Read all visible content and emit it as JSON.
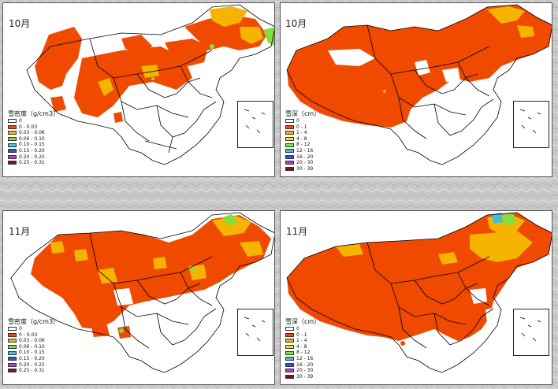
{
  "panels": [
    {
      "id": "p1",
      "month": "10月",
      "legend_title": "雪密度（g/cm3）",
      "variable": "density"
    },
    {
      "id": "p2",
      "month": "10月",
      "legend_title": "雪深（cm）",
      "variable": "depth"
    },
    {
      "id": "p3",
      "month": "11月",
      "legend_title": "雪密度（g/cm3）",
      "variable": "density"
    },
    {
      "id": "p4",
      "month": "11月",
      "legend_title": "雪深（cm）",
      "variable": "depth"
    }
  ],
  "legend_density": [
    {
      "label": "0",
      "color": "#ffffff"
    },
    {
      "label": "0 - 0.03",
      "color": "#f04a00"
    },
    {
      "label": "0.03 - 0.06",
      "color": "#f5b400"
    },
    {
      "label": "0.06 - 0.10",
      "color": "#7fe040"
    },
    {
      "label": "0.10 - 0.15",
      "color": "#3fc0d8"
    },
    {
      "label": "0.15 - 0.20",
      "color": "#3050e0"
    },
    {
      "label": "0.20 - 0.25",
      "color": "#b040d0"
    },
    {
      "label": "0.25 - 0.31",
      "color": "#801010"
    }
  ],
  "legend_depth": [
    {
      "label": "0",
      "color": "#ffffff"
    },
    {
      "label": "0 - 1",
      "color": "#f04a00"
    },
    {
      "label": "1 - 4",
      "color": "#f5b400"
    },
    {
      "label": "4 - 8",
      "color": "#e8e040"
    },
    {
      "label": "8 - 12",
      "color": "#7fe040"
    },
    {
      "label": "12 - 16",
      "color": "#3fc0d8"
    },
    {
      "label": "16 - 20",
      "color": "#3050e0"
    },
    {
      "label": "20 - 30",
      "color": "#b040d0"
    },
    {
      "label": "30 - 39",
      "color": "#801010"
    }
  ],
  "map_colors": {
    "red": "#f04a00",
    "orange": "#f5b400",
    "green": "#7fe040",
    "cyan": "#3fc0d8",
    "border": "#000000"
  }
}
